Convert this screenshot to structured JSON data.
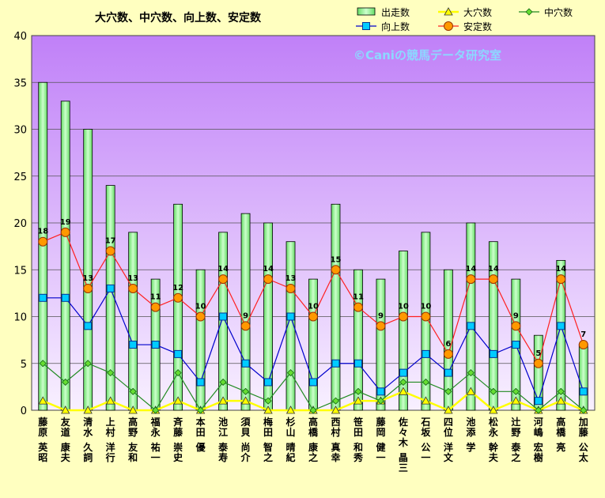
{
  "chart_data": {
    "type": "bar",
    "title": "大穴数、中穴数、向上数、安定数",
    "watermark": "©Caniの競馬データ研究室",
    "ylim": [
      0,
      40
    ],
    "yticks": [
      0,
      5,
      10,
      15,
      20,
      25,
      30,
      35,
      40
    ],
    "grid": true,
    "legend_position": "top-right",
    "categories": [
      "藤原 英昭",
      "友道 康夫",
      "清水 久詞",
      "上村 洋行",
      "高野 友和",
      "福永 祐一",
      "斉藤 崇史",
      "本田 優",
      "池江 泰寿",
      "須貝 尚介",
      "梅田 智之",
      "杉山 晴紀",
      "高橋 康之",
      "西村 真幸",
      "笹田 和秀",
      "藤岡 健一",
      "佐々木 晶三",
      "石坂 公一",
      "四位 洋文",
      "池添 学",
      "松永 幹夫",
      "辻野 泰之",
      "河嶋 宏樹",
      "高橋 亮",
      "加藤 公太"
    ],
    "series": [
      {
        "name": "出走数",
        "kind": "bar",
        "color": "#99ff99",
        "values": [
          35,
          33,
          30,
          24,
          19,
          14,
          22,
          15,
          19,
          21,
          20,
          18,
          14,
          22,
          15,
          14,
          17,
          19,
          15,
          20,
          18,
          14,
          8,
          16,
          7
        ]
      },
      {
        "name": "大穴数",
        "kind": "line",
        "color": "#ffff00",
        "values": [
          1,
          0,
          0,
          1,
          0,
          0,
          1,
          0,
          1,
          1,
          0,
          0,
          0,
          0,
          1,
          1,
          2,
          1,
          0,
          2,
          0,
          1,
          0,
          1,
          0
        ]
      },
      {
        "name": "中穴数",
        "kind": "line",
        "color": "#228b22",
        "values": [
          5,
          3,
          5,
          4,
          2,
          0,
          4,
          0,
          3,
          2,
          1,
          4,
          0,
          1,
          2,
          1,
          3,
          3,
          2,
          4,
          2,
          2,
          0,
          2,
          0
        ]
      },
      {
        "name": "向上数",
        "kind": "line",
        "color": "#0000cc",
        "values": [
          12,
          12,
          9,
          13,
          7,
          7,
          6,
          3,
          10,
          5,
          3,
          10,
          3,
          5,
          5,
          2,
          4,
          6,
          4,
          9,
          6,
          7,
          1,
          9,
          2
        ]
      },
      {
        "name": "安定数",
        "kind": "line",
        "color": "#ff2020",
        "values": [
          18,
          19,
          13,
          17,
          13,
          11,
          12,
          10,
          14,
          9,
          14,
          13,
          10,
          15,
          11,
          9,
          10,
          10,
          6,
          14,
          14,
          9,
          5,
          14,
          7
        ],
        "labeled": true
      }
    ],
    "colors": {
      "plot_bg_top": "#c080f8",
      "plot_bg_bottom": "#f8f0ff",
      "page_bg": "#ffffc0"
    }
  }
}
